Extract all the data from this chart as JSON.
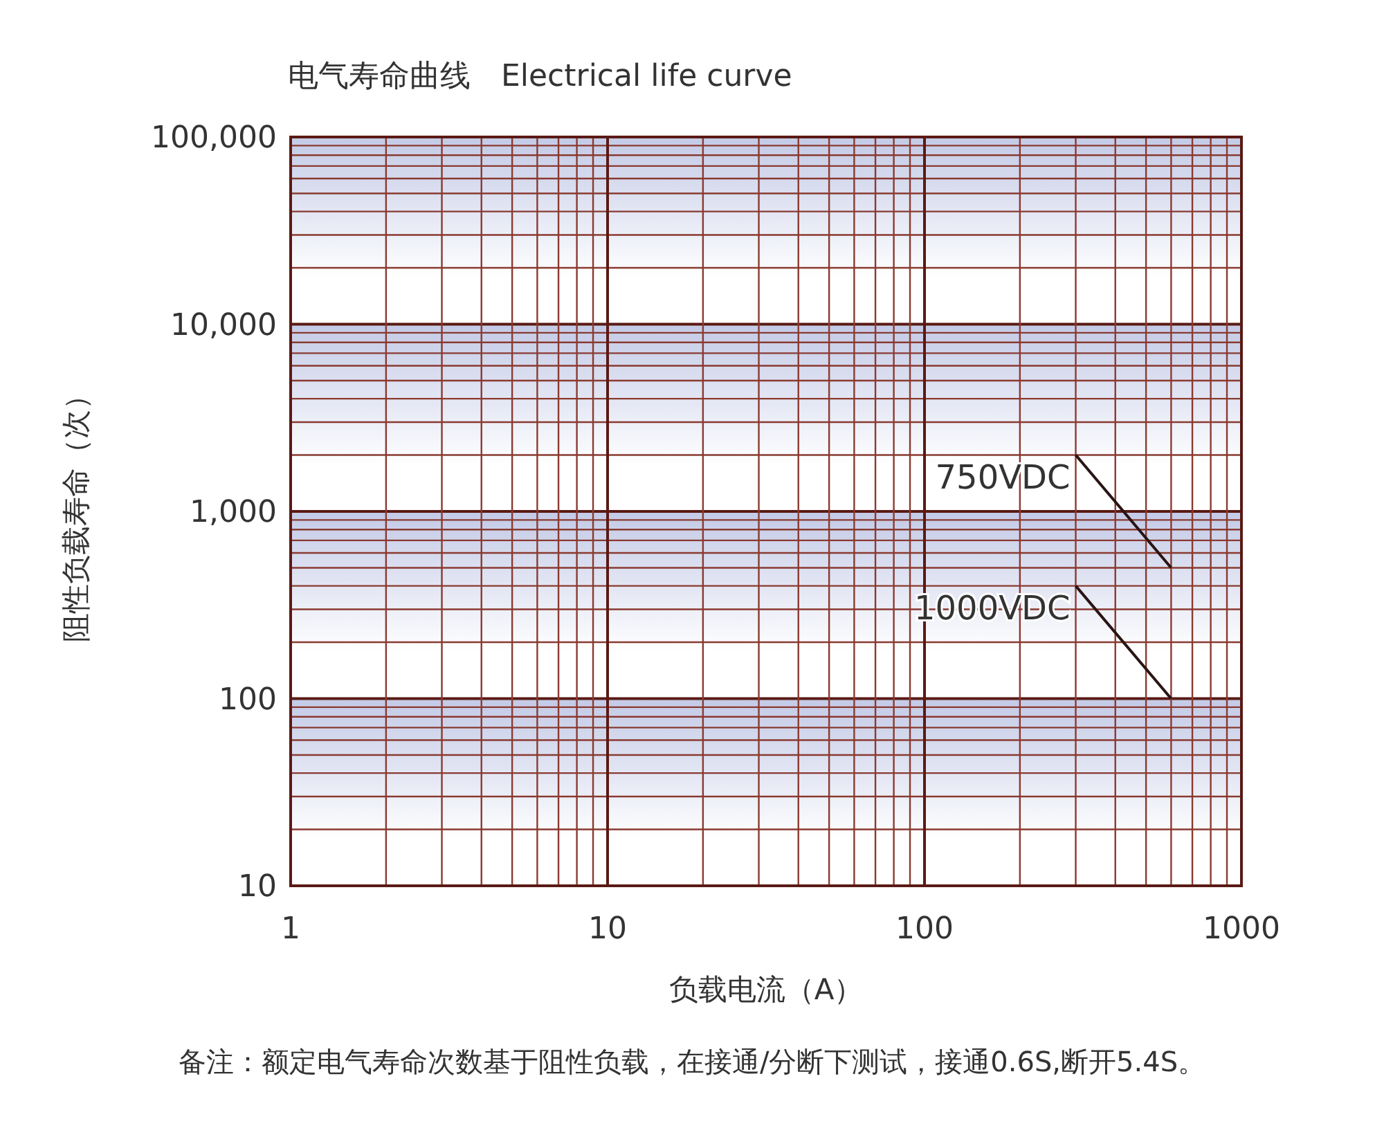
{
  "chart_data": {
    "type": "line",
    "title": "电气寿命曲线　Electrical life curve",
    "xlabel": "负载电流（A）",
    "ylabel": "阻性负载寿命（次）",
    "annotations": [
      "备注：额定电气寿命次数基于阻性负载，在接通/分断下测试，接通0.6S,断开5.4S。"
    ],
    "log": "xy",
    "grid": true,
    "xlim": [
      1,
      1000
    ],
    "xticks": [
      1,
      {
        "value": 2,
        "label": null
      },
      {
        "value": 3,
        "label": null
      },
      {
        "value": 4,
        "label": null
      },
      {
        "value": 5,
        "label": null
      },
      {
        "value": 6,
        "label": null
      },
      {
        "value": 7,
        "label": null
      },
      {
        "value": 8,
        "label": null
      },
      {
        "value": 9,
        "label": null
      },
      10,
      {
        "value": 20,
        "label": null
      },
      {
        "value": 30,
        "label": null
      },
      {
        "value": 40,
        "label": null
      },
      {
        "value": 50,
        "label": null
      },
      {
        "value": 60,
        "label": null
      },
      {
        "value": 70,
        "label": null
      },
      {
        "value": 80,
        "label": null
      },
      {
        "value": 90,
        "label": null
      },
      100,
      {
        "value": 200,
        "label": null
      },
      {
        "value": 300,
        "label": null
      },
      {
        "value": 400,
        "label": null
      },
      {
        "value": 500,
        "label": null
      },
      {
        "value": 600,
        "label": null
      },
      {
        "value": 700,
        "label": null
      },
      {
        "value": 800,
        "label": null
      },
      {
        "value": 900,
        "label": null
      },
      1000
    ],
    "ylim": [
      10,
      100000
    ],
    "yticks": [
      10,
      {
        "value": 20,
        "label": null
      },
      {
        "value": 30,
        "label": null
      },
      {
        "value": 40,
        "label": null
      },
      {
        "value": 50,
        "label": null
      },
      {
        "value": 60,
        "label": null
      },
      {
        "value": 70,
        "label": null
      },
      {
        "value": 80,
        "label": null
      },
      {
        "value": 90,
        "label": null
      },
      100,
      {
        "value": 200,
        "label": null
      },
      {
        "value": 300,
        "label": null
      },
      {
        "value": 400,
        "label": null
      },
      {
        "value": 500,
        "label": null
      },
      {
        "value": 600,
        "label": null
      },
      {
        "value": 700,
        "label": null
      },
      {
        "value": 800,
        "label": null
      },
      {
        "value": 900,
        "label": null
      },
      {
        "value": 1000,
        "label": "1,000"
      },
      {
        "value": 2000,
        "label": null
      },
      {
        "value": 3000,
        "label": null
      },
      {
        "value": 4000,
        "label": null
      },
      {
        "value": 5000,
        "label": null
      },
      {
        "value": 6000,
        "label": null
      },
      {
        "value": 7000,
        "label": null
      },
      {
        "value": 8000,
        "label": null
      },
      {
        "value": 9000,
        "label": null
      },
      {
        "value": 10000,
        "label": "10,000"
      },
      {
        "value": 20000,
        "label": null
      },
      {
        "value": 30000,
        "label": null
      },
      {
        "value": 40000,
        "label": null
      },
      {
        "value": 50000,
        "label": null
      },
      {
        "value": 60000,
        "label": null
      },
      {
        "value": 70000,
        "label": null
      },
      {
        "value": 80000,
        "label": null
      },
      {
        "value": 90000,
        "label": null
      },
      {
        "value": 100000,
        "label": "100,000"
      }
    ],
    "x": [
      300,
      600
    ],
    "series": [
      {
        "name": "750VDC",
        "color": "#2a1414",
        "values": [
          2000,
          500
        ]
      },
      {
        "name": "1000VDC",
        "color": "#2a1414",
        "values": [
          400,
          100
        ]
      }
    ]
  }
}
